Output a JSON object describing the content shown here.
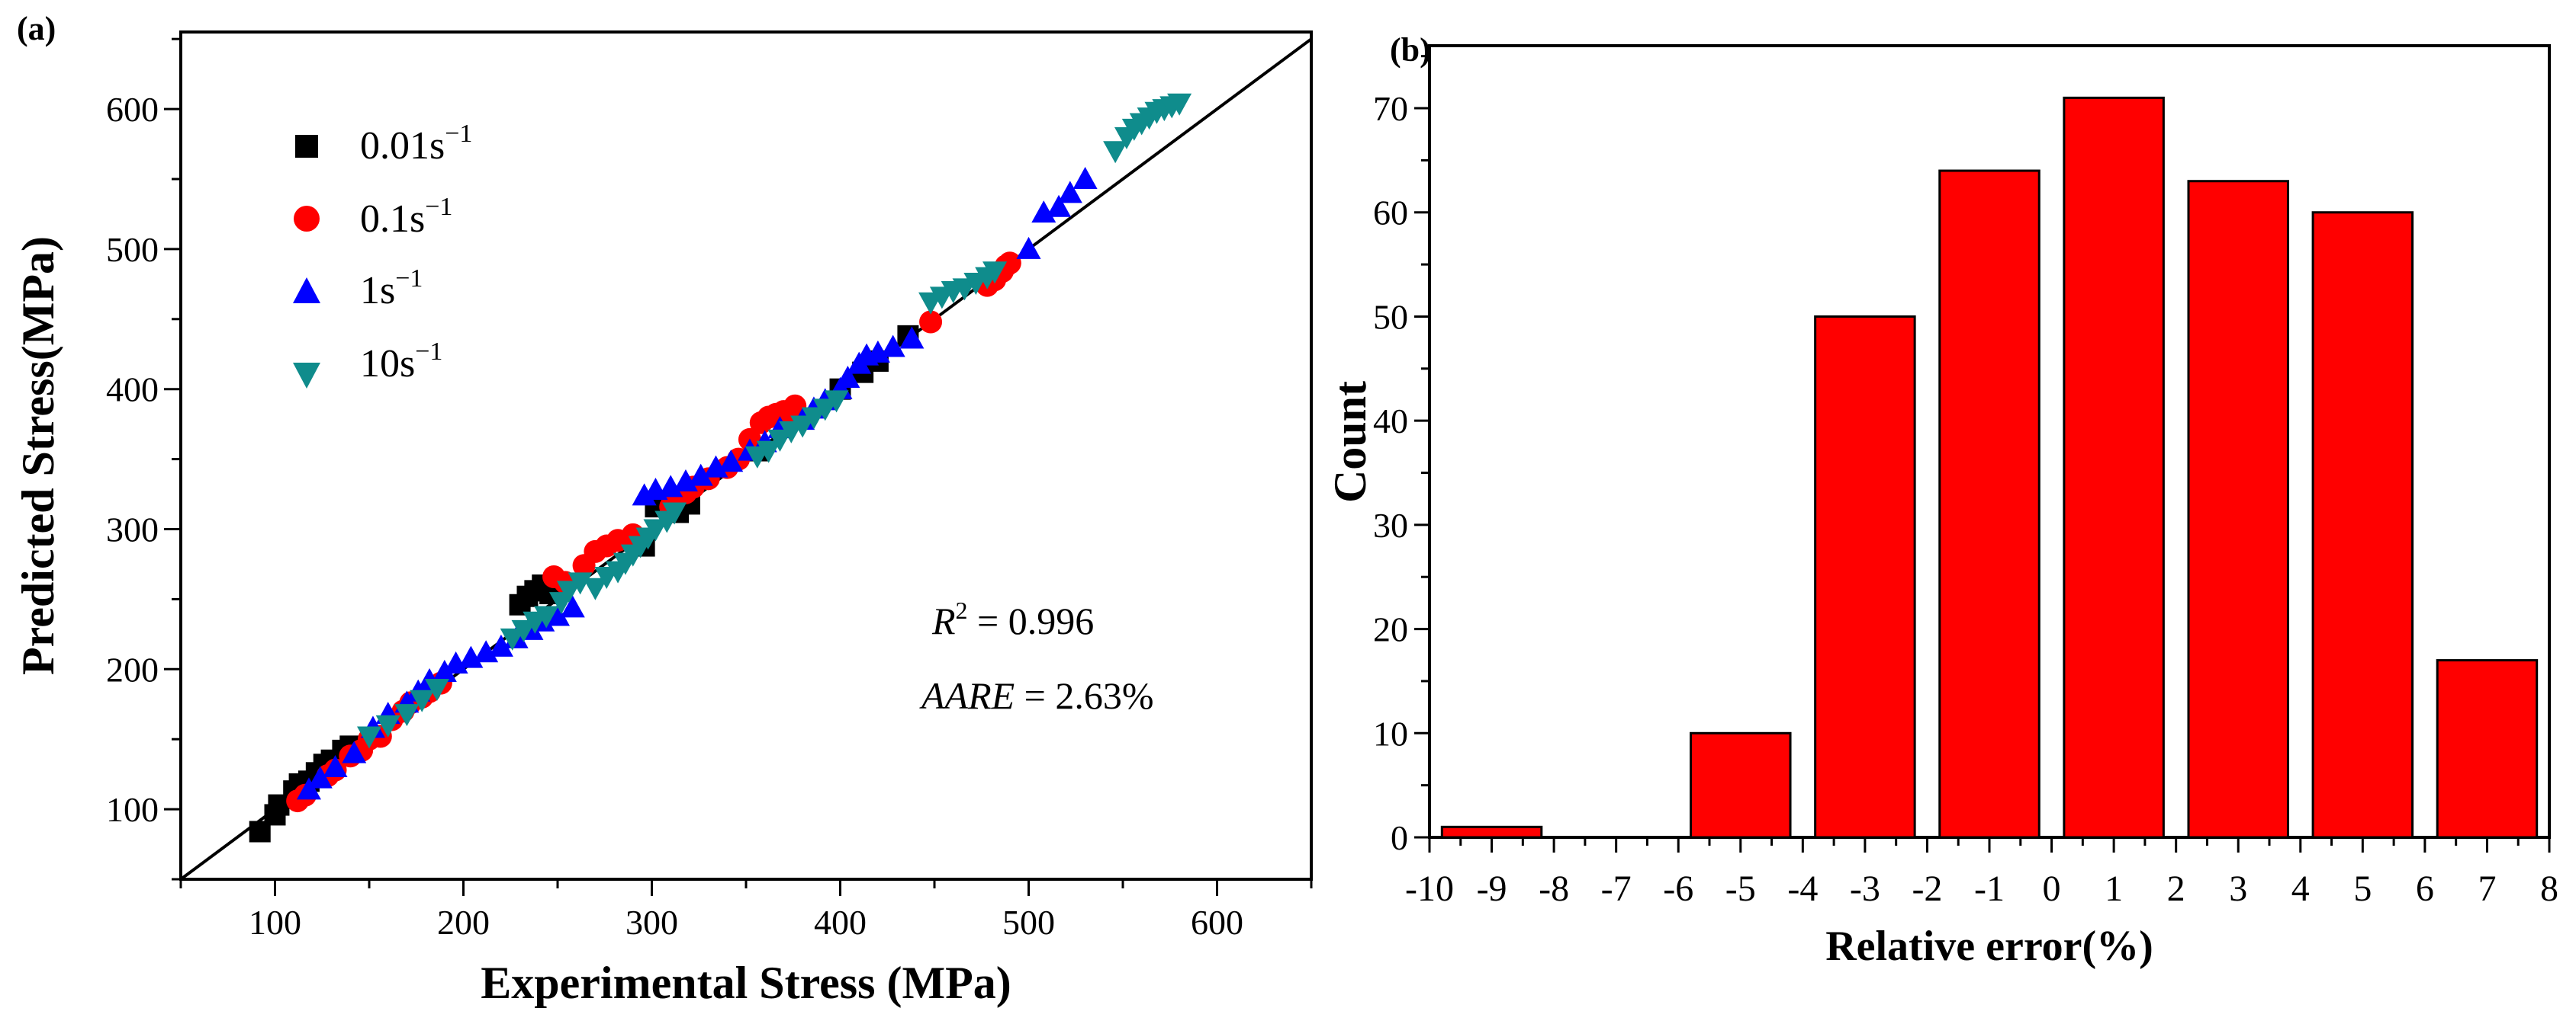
{
  "chart_data": [
    {
      "panel": "(a)",
      "type": "scatter",
      "xlabel": "Experimental Stress (MPa)",
      "ylabel": "Predicted Stress(MPa)",
      "xlim": [
        50,
        650
      ],
      "ylim": [
        50,
        655
      ],
      "xticks": [
        100,
        200,
        300,
        400,
        500,
        600
      ],
      "yticks": [
        100,
        200,
        300,
        400,
        500,
        600
      ],
      "legend_position": "top-left",
      "reference_line": "y = x",
      "annotations": {
        "r2_var": "R",
        "r2_sup": "2",
        "r2_value": " = 0.996",
        "aare_var": "AARE",
        "aare_value": " = 2.63%"
      },
      "series": [
        {
          "name": "0.01s",
          "superscript": "−1",
          "marker": "square",
          "color": "#000000",
          "points": [
            [
              92,
              84
            ],
            [
              100,
              96
            ],
            [
              102,
              103
            ],
            [
              110,
              113
            ],
            [
              113,
              118
            ],
            [
              118,
              120
            ],
            [
              122,
              126
            ],
            [
              126,
              132
            ],
            [
              130,
              135
            ],
            [
              136,
              142
            ],
            [
              140,
              145
            ],
            [
              230,
              246
            ],
            [
              234,
              252
            ],
            [
              238,
              256
            ],
            [
              242,
              260
            ],
            [
              246,
              254
            ],
            [
              296,
              288
            ],
            [
              302,
              316
            ],
            [
              314,
              312
            ],
            [
              320,
              318
            ],
            [
              356,
              356
            ],
            [
              400,
              400
            ],
            [
              412,
              412
            ],
            [
              420,
              420
            ],
            [
              436,
              438
            ]
          ]
        },
        {
          "name": "0.1s",
          "superscript": "−1",
          "marker": "circle",
          "color": "#ff0000",
          "points": [
            [
              112,
              106
            ],
            [
              116,
              110
            ],
            [
              128,
              124
            ],
            [
              132,
              128
            ],
            [
              140,
              138
            ],
            [
              146,
              142
            ],
            [
              150,
              150
            ],
            [
              156,
              152
            ],
            [
              162,
              164
            ],
            [
              168,
              170
            ],
            [
              172,
              176
            ],
            [
              178,
              180
            ],
            [
              182,
              184
            ],
            [
              188,
              190
            ],
            [
              248,
              266
            ],
            [
              254,
              262
            ],
            [
              264,
              274
            ],
            [
              270,
              284
            ],
            [
              276,
              288
            ],
            [
              282,
              292
            ],
            [
              290,
              296
            ],
            [
              310,
              316
            ],
            [
              318,
              326
            ],
            [
              322,
              330
            ],
            [
              330,
              336
            ],
            [
              340,
              344
            ],
            [
              346,
              350
            ],
            [
              352,
              364
            ],
            [
              358,
              376
            ],
            [
              362,
              380
            ],
            [
              366,
              382
            ],
            [
              370,
              384
            ],
            [
              374,
              380
            ],
            [
              376,
              388
            ],
            [
              448,
              448
            ],
            [
              478,
              474
            ],
            [
              482,
              478
            ],
            [
              486,
              484
            ],
            [
              488,
              488
            ],
            [
              490,
              490
            ]
          ]
        },
        {
          "name": "1s",
          "superscript": "−1",
          "marker": "triangle-up",
          "color": "#0000ff",
          "points": [
            [
              118,
              114
            ],
            [
              124,
              122
            ],
            [
              132,
              130
            ],
            [
              142,
              140
            ],
            [
              152,
              158
            ],
            [
              160,
              168
            ],
            [
              170,
              176
            ],
            [
              176,
              184
            ],
            [
              182,
              192
            ],
            [
              190,
              198
            ],
            [
              196,
              204
            ],
            [
              204,
              208
            ],
            [
              212,
              212
            ],
            [
              220,
              216
            ],
            [
              228,
              222
            ],
            [
              236,
              228
            ],
            [
              242,
              234
            ],
            [
              250,
              238
            ],
            [
              258,
              244
            ],
            [
              296,
              324
            ],
            [
              302,
              328
            ],
            [
              310,
              330
            ],
            [
              318,
              334
            ],
            [
              326,
              338
            ],
            [
              334,
              344
            ],
            [
              342,
              348
            ],
            [
              352,
              356
            ],
            [
              360,
              362
            ],
            [
              368,
              372
            ],
            [
              380,
              378
            ],
            [
              386,
              386
            ],
            [
              392,
              392
            ],
            [
              400,
              400
            ],
            [
              404,
              408
            ],
            [
              410,
              418
            ],
            [
              414,
              424
            ],
            [
              420,
              426
            ],
            [
              428,
              430
            ],
            [
              438,
              436
            ],
            [
              500,
              500
            ],
            [
              508,
              526
            ],
            [
              516,
              530
            ],
            [
              522,
              540
            ],
            [
              530,
              550
            ]
          ]
        },
        {
          "name": "10s",
          "superscript": "−1",
          "marker": "triangle-down",
          "color": "#0f8c8c",
          "points": [
            [
              150,
              152
            ],
            [
              160,
              160
            ],
            [
              170,
              168
            ],
            [
              178,
              178
            ],
            [
              186,
              186
            ],
            [
              226,
              222
            ],
            [
              232,
              228
            ],
            [
              238,
              234
            ],
            [
              244,
              238
            ],
            [
              252,
              248
            ],
            [
              256,
              256
            ],
            [
              262,
              262
            ],
            [
              270,
              258
            ],
            [
              276,
              266
            ],
            [
              282,
              270
            ],
            [
              286,
              276
            ],
            [
              290,
              282
            ],
            [
              294,
              288
            ],
            [
              298,
              294
            ],
            [
              302,
              300
            ],
            [
              308,
              306
            ],
            [
              312,
              312
            ],
            [
              356,
              352
            ],
            [
              362,
              356
            ],
            [
              368,
              364
            ],
            [
              374,
              370
            ],
            [
              380,
              374
            ],
            [
              386,
              380
            ],
            [
              392,
              386
            ],
            [
              398,
              392
            ],
            [
              448,
              462
            ],
            [
              454,
              466
            ],
            [
              460,
              470
            ],
            [
              466,
              472
            ],
            [
              472,
              476
            ],
            [
              478,
              480
            ],
            [
              482,
              484
            ],
            [
              546,
              570
            ],
            [
              552,
              580
            ],
            [
              556,
              586
            ],
            [
              560,
              590
            ],
            [
              564,
              594
            ],
            [
              568,
              598
            ],
            [
              572,
              600
            ],
            [
              576,
              602
            ],
            [
              580,
              604
            ]
          ]
        }
      ]
    },
    {
      "panel": "(b)",
      "type": "bar",
      "xlabel": "Relative error(%)",
      "ylabel": "Count",
      "bar_color": "#ff0000",
      "xlim": [
        -10,
        8
      ],
      "ylim": [
        0,
        76
      ],
      "yticks": [
        0,
        10,
        20,
        30,
        40,
        50,
        60,
        70
      ],
      "xtick_labels": [
        "-10",
        "-9",
        "-8",
        "-7",
        "-6",
        "-5",
        "-4",
        "-3",
        "-2",
        "-1",
        "0",
        "1",
        "2",
        "3",
        "4",
        "5",
        "6",
        "7",
        "8"
      ],
      "bar_width": 1.6,
      "bins": [
        {
          "center": -9,
          "value": 1
        },
        {
          "center": -7,
          "value": 0
        },
        {
          "center": -5,
          "value": 10
        },
        {
          "center": -3,
          "value": 50
        },
        {
          "center": -1,
          "value": 64
        },
        {
          "center": 1,
          "value": 71
        },
        {
          "center": 3,
          "value": 63
        },
        {
          "center": 5,
          "value": 60
        },
        {
          "center": 7,
          "value": 17
        }
      ]
    }
  ]
}
